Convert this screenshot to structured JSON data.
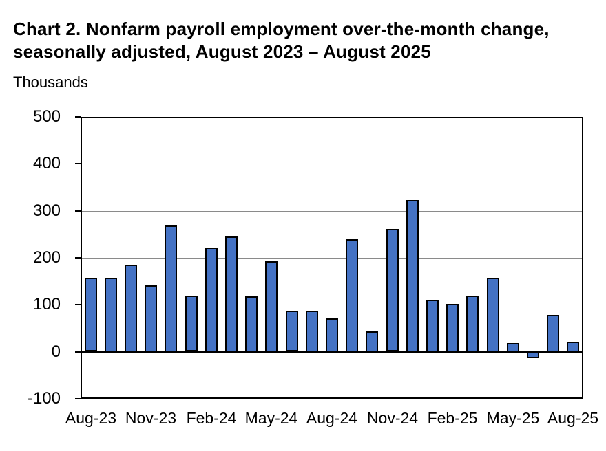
{
  "header": {
    "title_line1": "Chart 2. Nonfarm payroll employment over-the-month change,",
    "title_line2": "seasonally adjusted, August 2023 – August 2025",
    "units_label": "Thousands"
  },
  "chart_data": {
    "type": "bar",
    "title": "Chart 2. Nonfarm payroll employment over-the-month change, seasonally adjusted, August 2023 – August 2025",
    "ylabel": "Thousands",
    "xlabel": "",
    "categories": [
      "Aug-23",
      "Sep-23",
      "Oct-23",
      "Nov-23",
      "Dec-23",
      "Jan-24",
      "Feb-24",
      "Mar-24",
      "Apr-24",
      "May-24",
      "Jun-24",
      "Jul-24",
      "Aug-24",
      "Sep-24",
      "Oct-24",
      "Nov-24",
      "Dec-24",
      "Jan-25",
      "Feb-25",
      "Mar-25",
      "Apr-25",
      "May-25",
      "Jun-25",
      "Jul-25",
      "Aug-25"
    ],
    "values": [
      157,
      158,
      186,
      142,
      269,
      119,
      222,
      246,
      118,
      193,
      87,
      88,
      71,
      240,
      44,
      261,
      323,
      111,
      102,
      120,
      158,
      19,
      -13,
      79,
      22
    ],
    "x_tick_labels": [
      "Aug-23",
      "Nov-23",
      "Feb-24",
      "May-24",
      "Aug-24",
      "Nov-24",
      "Feb-25",
      "May-25",
      "Aug-25"
    ],
    "x_tick_interval": 3,
    "y_ticks": [
      500,
      400,
      300,
      200,
      100,
      0,
      -100
    ],
    "ylim": [
      -100,
      500
    ],
    "grid": true,
    "legend": "none",
    "colors": {
      "bar_fill": "#4472C4",
      "bar_border": "#000000",
      "gridline": "#8a8a8a",
      "axis": "#000000",
      "text": "#000000",
      "background": "#ffffff"
    }
  }
}
